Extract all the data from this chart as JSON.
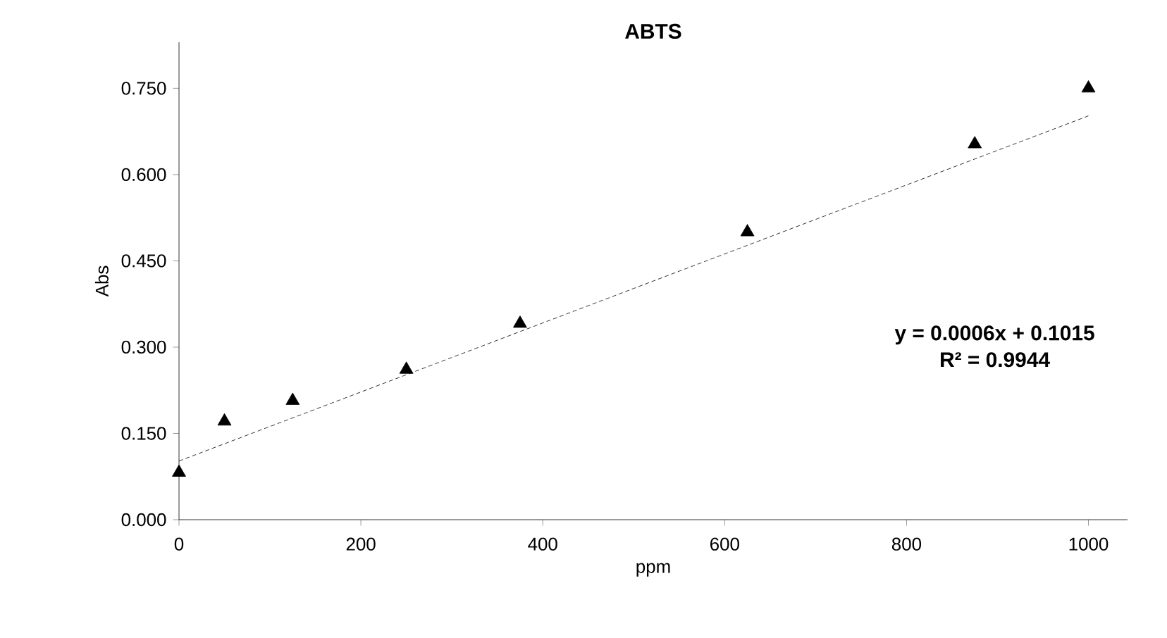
{
  "chart_data": {
    "type": "scatter",
    "title": "ABTS",
    "xlabel": "ppm",
    "ylabel": "Abs",
    "xlim": [
      0,
      1043
    ],
    "ylim": [
      0,
      0.83
    ],
    "xticks": [
      0,
      200,
      400,
      600,
      800,
      1000
    ],
    "yticks": [
      {
        "value": 0,
        "label": "0.000"
      },
      {
        "value": 0.15,
        "label": "0.150"
      },
      {
        "value": 0.3,
        "label": "0.300"
      },
      {
        "value": 0.45,
        "label": "0.450"
      },
      {
        "value": 0.6,
        "label": "0.600"
      },
      {
        "value": 0.75,
        "label": "0.750"
      }
    ],
    "grid": false,
    "series": [
      {
        "color": "#000000",
        "marker": "triangle",
        "x": [
          0,
          50,
          125,
          250,
          375,
          625,
          875,
          1000
        ],
        "values": [
          0.082,
          0.171,
          0.207,
          0.261,
          0.341,
          0.5,
          0.653,
          0.75
        ]
      },
      {
        "type": "line",
        "color": "#000000",
        "marker": "none",
        "line_style": "dashed",
        "x": [
          0,
          1000
        ],
        "values": [
          0.102,
          0.702
        ]
      }
    ],
    "annotations": [
      "y = 0.0006x + 0.1015",
      "R² = 0.9944"
    ]
  }
}
